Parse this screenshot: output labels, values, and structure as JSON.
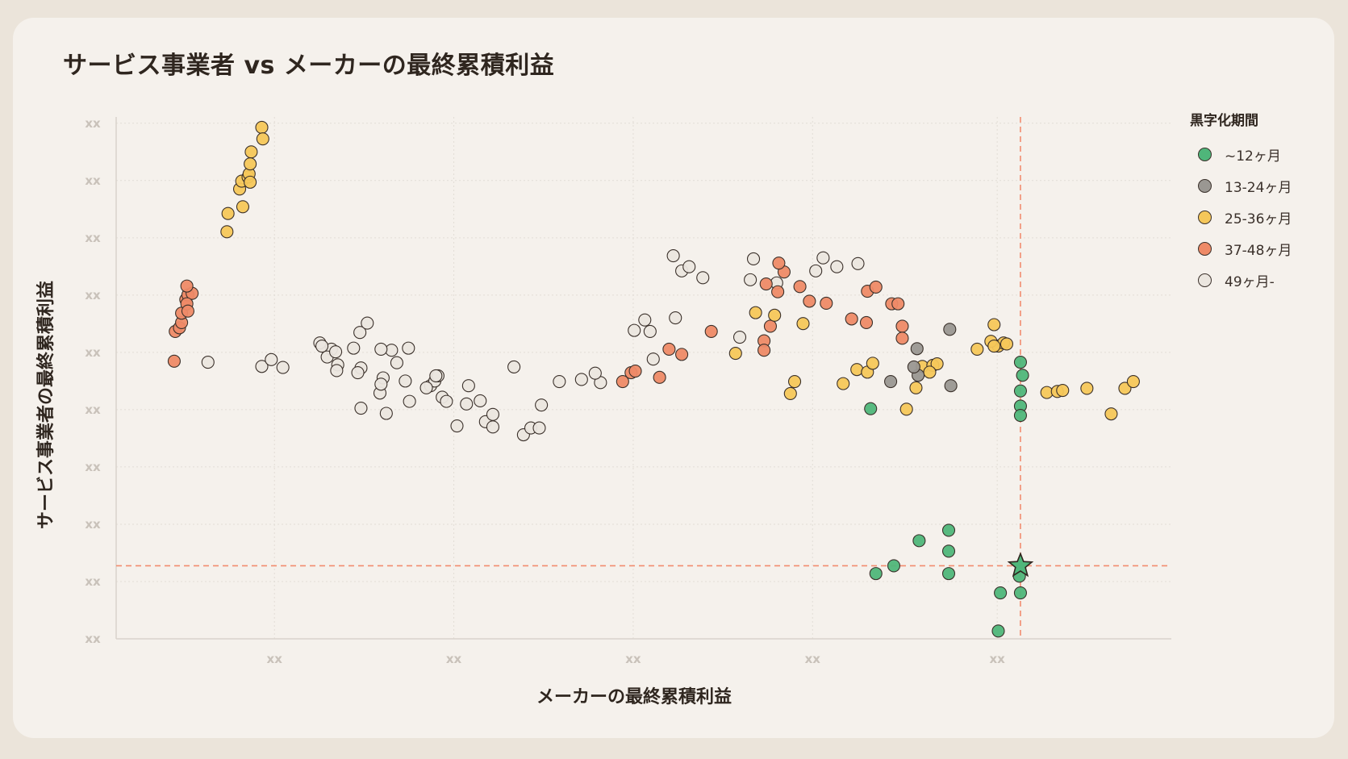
{
  "title": "サービス事業者 vs メーカーの最終累積利益",
  "chart_data": {
    "type": "scatter",
    "title": "サービス事業者 vs メーカーの最終累積利益",
    "xlabel": "メーカーの最終累積利益",
    "ylabel": "サービス事業者の最終累積利益",
    "x_ticks": [
      "xx",
      "xx",
      "xx",
      "xx",
      "xx"
    ],
    "y_ticks": [
      "xx",
      "xx",
      "xx",
      "xx",
      "xx",
      "xx",
      "xx",
      "xx",
      "xx",
      "xx"
    ],
    "xlim": [
      0,
      1000
    ],
    "ylim": [
      0,
      1000
    ],
    "grid": true,
    "legend_position": "right",
    "legend_title": "黒字化期間",
    "reference_point": {
      "x": 857,
      "y": 140
    },
    "series": [
      {
        "name": "~12ヶ月",
        "color": "#4fb67a",
        "points": [
          [
            857,
            530
          ],
          [
            859,
            505
          ],
          [
            857,
            475
          ],
          [
            857,
            446
          ],
          [
            857,
            428
          ],
          [
            715,
            441
          ],
          [
            856,
            120
          ],
          [
            857,
            88
          ],
          [
            838,
            88
          ],
          [
            836,
            15
          ],
          [
            720,
            125
          ],
          [
            737,
            140
          ],
          [
            761,
            188
          ],
          [
            789,
            208
          ],
          [
            789,
            168
          ],
          [
            789,
            125
          ]
        ]
      },
      {
        "name": "13-24ヶ月",
        "color": "#9a9792",
        "points": [
          [
            759,
            556
          ],
          [
            734,
            493
          ],
          [
            760,
            505
          ],
          [
            756,
            521
          ],
          [
            790,
            593
          ],
          [
            791,
            485
          ]
        ]
      },
      {
        "name": "25-36ヶ月",
        "color": "#f5c75a",
        "points": [
          [
            105,
            780
          ],
          [
            106,
            815
          ],
          [
            120,
            828
          ],
          [
            117,
            862
          ],
          [
            119,
            877
          ],
          [
            125,
            885
          ],
          [
            126,
            891
          ],
          [
            127,
            875
          ],
          [
            128,
            933
          ],
          [
            127,
            910
          ],
          [
            138,
            980
          ],
          [
            139,
            958
          ],
          [
            639,
            470
          ],
          [
            643,
            493
          ],
          [
            689,
            489
          ],
          [
            702,
            516
          ],
          [
            712,
            511
          ],
          [
            717,
            528
          ],
          [
            749,
            440
          ],
          [
            758,
            481
          ],
          [
            764,
            522
          ],
          [
            774,
            524
          ],
          [
            778,
            527
          ],
          [
            771,
            511
          ],
          [
            816,
            555
          ],
          [
            832,
            602
          ],
          [
            836,
            561
          ],
          [
            841,
            567
          ],
          [
            829,
            570
          ],
          [
            832,
            561
          ],
          [
            844,
            565
          ],
          [
            882,
            472
          ],
          [
            892,
            474
          ],
          [
            897,
            476
          ],
          [
            920,
            480
          ],
          [
            943,
            431
          ],
          [
            956,
            480
          ],
          [
            964,
            493
          ],
          [
            587,
            547
          ],
          [
            606,
            625
          ],
          [
            651,
            604
          ],
          [
            624,
            620
          ]
        ]
      },
      {
        "name": "37-48ヶ月",
        "color": "#ee8a67",
        "points": [
          [
            55,
            532
          ],
          [
            56,
            589
          ],
          [
            60,
            596
          ],
          [
            62,
            606
          ],
          [
            62,
            624
          ],
          [
            66,
            650
          ],
          [
            68,
            659
          ],
          [
            72,
            662
          ],
          [
            67,
            642
          ],
          [
            68,
            628
          ],
          [
            67,
            676
          ],
          [
            488,
            510
          ],
          [
            480,
            493
          ],
          [
            492,
            513
          ],
          [
            515,
            501
          ],
          [
            524,
            555
          ],
          [
            536,
            545
          ],
          [
            564,
            589
          ],
          [
            616,
            680
          ],
          [
            657,
            647
          ],
          [
            673,
            643
          ],
          [
            697,
            613
          ],
          [
            711,
            606
          ],
          [
            745,
            599
          ],
          [
            712,
            666
          ],
          [
            720,
            674
          ],
          [
            735,
            642
          ],
          [
            741,
            642
          ],
          [
            745,
            576
          ],
          [
            627,
            665
          ],
          [
            648,
            675
          ],
          [
            633,
            703
          ],
          [
            628,
            720
          ],
          [
            620,
            599
          ],
          [
            614,
            571
          ],
          [
            614,
            553
          ]
        ]
      },
      {
        "name": "49ヶ月-",
        "color": "#ebe6df",
        "points": [
          [
            87,
            530
          ],
          [
            138,
            522
          ],
          [
            147,
            535
          ],
          [
            158,
            520
          ],
          [
            193,
            567
          ],
          [
            204,
            555
          ],
          [
            200,
            540
          ],
          [
            195,
            561
          ],
          [
            208,
            550
          ],
          [
            225,
            557
          ],
          [
            261,
            553
          ],
          [
            277,
            557
          ],
          [
            250,
            471
          ],
          [
            256,
            432
          ],
          [
            232,
            442
          ],
          [
            253,
            500
          ],
          [
            251,
            488
          ],
          [
            298,
            485
          ],
          [
            302,
            494
          ],
          [
            305,
            504
          ],
          [
            266,
            529
          ],
          [
            303,
            504
          ],
          [
            309,
            463
          ],
          [
            313,
            455
          ],
          [
            323,
            408
          ],
          [
            350,
            416
          ],
          [
            357,
            406
          ],
          [
            386,
            391
          ],
          [
            393,
            404
          ],
          [
            401,
            404
          ],
          [
            403,
            448
          ],
          [
            332,
            450
          ],
          [
            334,
            485
          ],
          [
            357,
            430
          ],
          [
            345,
            456
          ],
          [
            294,
            481
          ],
          [
            274,
            494
          ],
          [
            278,
            455
          ],
          [
            232,
            519
          ],
          [
            210,
            525
          ],
          [
            229,
            510
          ],
          [
            231,
            587
          ],
          [
            209,
            514
          ],
          [
            238,
            605
          ],
          [
            251,
            555
          ],
          [
            377,
            521
          ],
          [
            420,
            493
          ],
          [
            459,
            491
          ],
          [
            441,
            497
          ],
          [
            454,
            509
          ],
          [
            506,
            589
          ],
          [
            501,
            611
          ],
          [
            491,
            591
          ],
          [
            530,
            615
          ],
          [
            536,
            705
          ],
          [
            528,
            734
          ],
          [
            543,
            713
          ],
          [
            556,
            692
          ],
          [
            601,
            688
          ],
          [
            604,
            728
          ],
          [
            591,
            578
          ],
          [
            626,
            682
          ],
          [
            663,
            705
          ],
          [
            670,
            730
          ],
          [
            683,
            713
          ],
          [
            703,
            719
          ],
          [
            509,
            536
          ]
        ]
      }
    ]
  },
  "colors": {
    "background": "#ebe4da",
    "card": "#f5f1ec",
    "grid": "#e2ddd6",
    "refline": "#f28c6f",
    "text": "#2f261f",
    "marker_edge": "#3a302a"
  }
}
